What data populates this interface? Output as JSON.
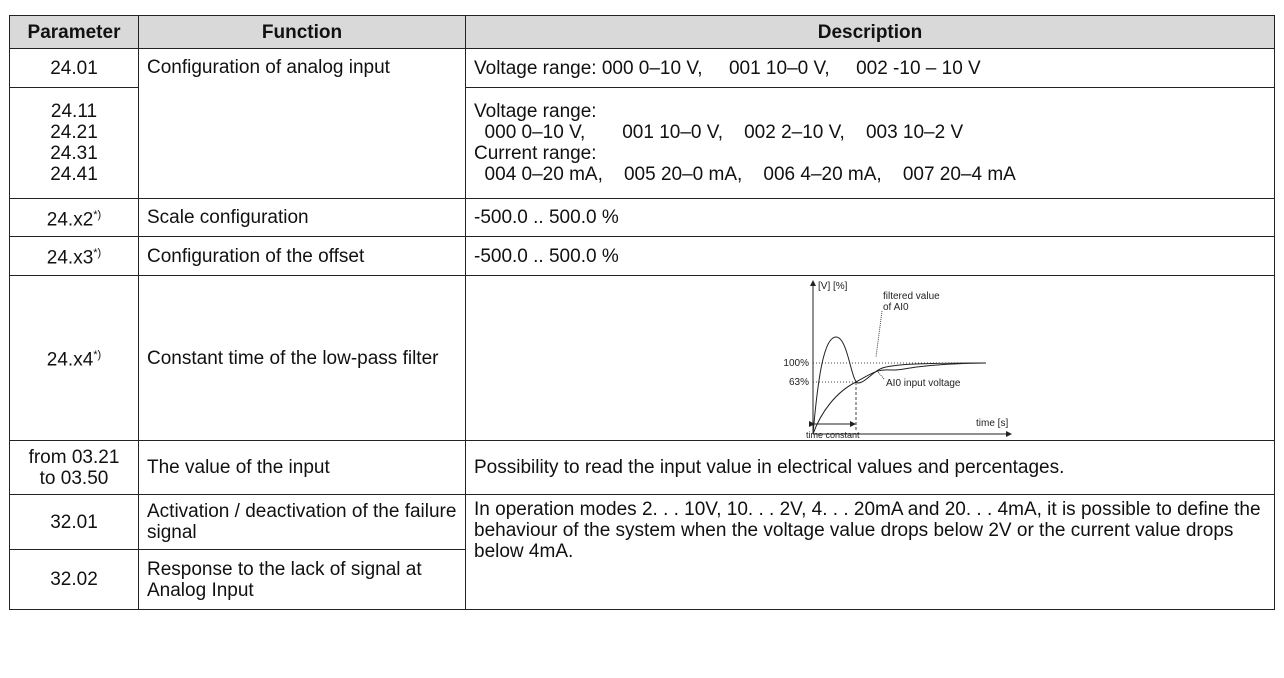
{
  "table": {
    "header": [
      "Parameter",
      "Function",
      "Description"
    ],
    "rows": [
      {
        "parameter": [
          "24.01"
        ],
        "function": "Configuration of analog input",
        "description": [
          "Voltage range: 000 0–10 V,     001 10–0 V,     002 -10 – 10 V"
        ]
      },
      {
        "parameter": [
          "24.11",
          "24.21",
          "24.31",
          "24.41"
        ],
        "description": [
          "Voltage range:",
          "  000 0–10 V,       001 10–0 V,    002 2–10 V,    003 10–2 V",
          "Current range:",
          "  004 0–20 mA,    005 20–0 mA,    006 4–20 mA,    007 20–4 mA"
        ]
      },
      {
        "parameter": [
          "24.x2"
        ],
        "note": "*)",
        "function": "Scale configuration",
        "description": [
          "-500.0 .. 500.0 %"
        ]
      },
      {
        "parameter": [
          "24.x3"
        ],
        "note": "*)",
        "function": "Configuration of the offset",
        "description": [
          "-500.0 .. 500.0 %"
        ]
      },
      {
        "parameter": [
          "24.x4"
        ],
        "note": "*)",
        "function": "Constant time of the low-pass filter",
        "diagram": {
          "y_axis": "[V] [%]",
          "filtered_label": [
            "filtered value",
            "of AI0"
          ],
          "level_100": "100%",
          "level_63": "63%",
          "input_label": "AI0 input voltage",
          "x_axis": "time [s]",
          "time_constant": "time constant"
        }
      },
      {
        "parameter": [
          "from 03.21",
          "to 03.50"
        ],
        "function": "The value of the input",
        "description": [
          "Possibility to read the input value in electrical values and percentages."
        ]
      },
      {
        "parameter": [
          "32.01"
        ],
        "function": "Activation / deactivation of the failure signal",
        "description": [
          "In operation modes 2. . . 10V, 10. . . 2V, 4. . . 20mA and 20. . . 4mA, it is possible to define the behaviour of the system when the voltage value drops below 2V or the current value drops below 4mA."
        ]
      },
      {
        "parameter": [
          "32.02"
        ],
        "function": "Response to the lack of signal at Analog Input"
      }
    ]
  }
}
